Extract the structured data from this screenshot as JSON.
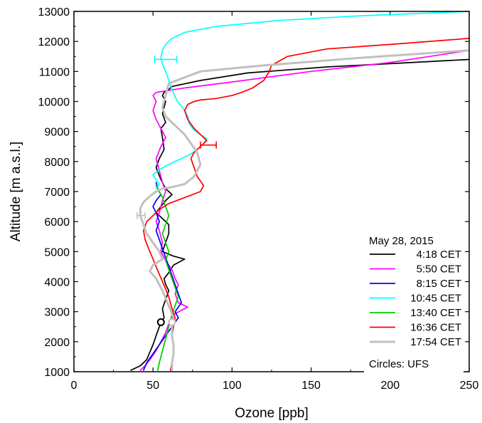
{
  "chart_data": {
    "type": "line",
    "xlabel": "Ozone [ppb]",
    "ylabel": "Altitude [m a.s.l.]",
    "xlim": [
      0,
      250
    ],
    "ylim": [
      1000,
      13000
    ],
    "x_ticks": [
      0,
      50,
      100,
      150,
      200,
      250
    ],
    "y_ticks": [
      1000,
      2000,
      3000,
      4000,
      5000,
      6000,
      7000,
      8000,
      9000,
      10000,
      11000,
      12000,
      13000
    ],
    "x_tick_labels": [
      "0",
      "50",
      "100",
      "150",
      "200",
      "250"
    ],
    "y_tick_labels": [
      "1000",
      "2000",
      "3000",
      "4000",
      "5000",
      "6000",
      "7000",
      "8000",
      "9000",
      "10000",
      "11000",
      "12000",
      "13000"
    ],
    "grid": false,
    "legend": {
      "placement": "bottom-right",
      "title": "May 28, 2015",
      "note": "Circles: UFS"
    },
    "series": [
      {
        "name": "4:18 CET",
        "color": "#000000",
        "x": [
          36,
          42,
          46,
          48,
          50,
          52,
          54,
          57,
          56,
          58,
          60,
          58,
          57,
          60,
          63,
          70,
          63,
          56,
          58,
          60,
          60,
          56,
          52,
          55,
          58,
          62,
          58,
          55,
          52,
          54,
          57,
          56,
          55,
          58,
          56,
          57,
          58,
          56,
          57,
          60,
          62,
          80,
          110,
          160,
          250
        ],
        "y": [
          1050,
          1200,
          1400,
          1650,
          1900,
          2200,
          2500,
          2800,
          3100,
          3400,
          3700,
          3900,
          4100,
          4300,
          4550,
          4750,
          4850,
          5000,
          5300,
          5600,
          5900,
          6100,
          6300,
          6500,
          6700,
          6900,
          7100,
          7400,
          7800,
          8100,
          8400,
          8800,
          9100,
          9300,
          9600,
          9800,
          10000,
          10200,
          10300,
          10400,
          10500,
          10700,
          10950,
          11150,
          11400
        ]
      },
      {
        "name": "5:50 CET",
        "color": "#ff00ff",
        "x": [
          42,
          45,
          48,
          52,
          55,
          58,
          60,
          63,
          68,
          72,
          66,
          64,
          66,
          64,
          62,
          58,
          55,
          56,
          54,
          52,
          54,
          56,
          58,
          56,
          54,
          52,
          55,
          58,
          55,
          52,
          50,
          52,
          50,
          52,
          70,
          100,
          150,
          200,
          250
        ],
        "y": [
          1050,
          1200,
          1400,
          1700,
          2000,
          2300,
          2600,
          2900,
          3050,
          3150,
          3300,
          3600,
          3900,
          4100,
          4400,
          4700,
          5000,
          5300,
          5700,
          6000,
          6300,
          6700,
          7000,
          7300,
          7700,
          8100,
          8500,
          8800,
          9100,
          9400,
          9700,
          10000,
          10200,
          10300,
          10450,
          10650,
          11000,
          11300,
          11700
        ]
      },
      {
        "name": "8:15 CET",
        "color": "#0000ff",
        "x": [
          44,
          46,
          50,
          54,
          58,
          62,
          66,
          64,
          68,
          66,
          64,
          62,
          60,
          58,
          56,
          54,
          52,
          54,
          52,
          50,
          52,
          55,
          53,
          52
        ],
        "y": [
          1050,
          1300,
          1600,
          1900,
          2200,
          2500,
          2800,
          3000,
          3300,
          3600,
          3900,
          4200,
          4500,
          4800,
          5100,
          5400,
          5700,
          6000,
          6300,
          6500,
          6700,
          6900,
          7100,
          7300
        ]
      },
      {
        "name": "10:45 CET",
        "color": "#00ffff",
        "x": [
          52,
          54,
          52,
          50,
          52,
          55,
          58,
          62,
          66,
          70,
          74,
          78,
          82,
          84,
          80,
          76,
          73,
          72,
          70,
          68,
          66,
          64,
          62,
          60,
          58,
          56,
          55,
          56,
          58,
          62,
          70,
          90,
          130,
          180,
          250
        ],
        "y": [
          7100,
          7250,
          7400,
          7550,
          7650,
          7750,
          7850,
          7950,
          8050,
          8150,
          8250,
          8400,
          8600,
          8750,
          8900,
          9050,
          9250,
          9500,
          9700,
          9850,
          9950,
          10150,
          10400,
          10700,
          11000,
          11250,
          11450,
          11700,
          11900,
          12100,
          12300,
          12500,
          12700,
          12850,
          13000
        ]
      },
      {
        "name": "13:40 CET",
        "color": "#00cc00",
        "x": [
          53,
          54,
          56,
          58,
          60,
          62,
          64,
          66,
          64,
          62,
          60,
          58,
          60,
          58,
          56,
          58,
          60,
          58,
          56,
          54,
          52
        ],
        "y": [
          1050,
          1300,
          1700,
          2100,
          2500,
          2900,
          3200,
          3500,
          3800,
          4100,
          4400,
          4700,
          5000,
          5300,
          5600,
          5900,
          6200,
          6500,
          6800,
          7000,
          7200
        ]
      },
      {
        "name": "16:36 CET",
        "color": "#ff0000",
        "x": [
          61,
          62,
          63,
          63,
          62,
          63,
          64,
          62,
          60,
          56,
          52,
          48,
          45,
          44,
          46,
          50,
          54,
          60,
          70,
          80,
          82,
          78,
          76,
          74,
          76,
          80,
          84,
          80,
          76,
          72,
          70,
          72,
          76,
          80,
          90,
          100,
          106,
          113,
          120,
          123,
          125,
          135,
          160,
          200,
          250
        ],
        "y": [
          1050,
          1300,
          1600,
          1900,
          2200,
          2500,
          2800,
          3100,
          3500,
          4000,
          4500,
          5000,
          5400,
          5700,
          6000,
          6200,
          6400,
          6600,
          6800,
          7000,
          7200,
          7500,
          7800,
          8100,
          8300,
          8500,
          8700,
          8900,
          9100,
          9400,
          9700,
          9900,
          10000,
          10050,
          10100,
          10200,
          10300,
          10450,
          10700,
          10950,
          11200,
          11500,
          11750,
          11900,
          12100
        ]
      },
      {
        "name": "17:54 CET",
        "color": "#c0c0c0",
        "x": [
          62,
          62,
          63,
          63,
          62,
          62,
          63,
          60,
          56,
          52,
          48,
          50,
          56,
          54,
          50,
          46,
          44,
          42,
          42,
          44,
          48,
          52,
          56,
          62,
          70,
          76,
          80,
          78,
          74,
          70,
          66,
          62,
          58,
          56,
          58,
          60,
          80,
          120,
          180,
          250
        ],
        "y": [
          1050,
          1300,
          1600,
          1900,
          2200,
          2500,
          2800,
          3200,
          3700,
          4100,
          4350,
          4550,
          4750,
          5000,
          5300,
          5600,
          5900,
          6200,
          6450,
          6650,
          6850,
          7000,
          7100,
          7150,
          7250,
          7500,
          7900,
          8300,
          8600,
          8900,
          9100,
          9300,
          9500,
          9800,
          10200,
          10600,
          11000,
          11200,
          11450,
          11700
        ]
      }
    ],
    "error_bars": [
      {
        "series": "10:45 CET",
        "x": 58,
        "y": 11400,
        "x_low": 51,
        "x_high": 65
      },
      {
        "series": "16:36 CET",
        "x": 84,
        "y": 8550,
        "x_low": 80,
        "x_high": 90
      },
      {
        "series": "17:54 CET",
        "x": 42,
        "y": 6200,
        "x_low": 40,
        "x_high": 45
      }
    ],
    "circles": [
      {
        "series": "4:18 CET",
        "x": 55,
        "y": 2650
      },
      {
        "series": "17:54 CET",
        "x": 62,
        "y": 2650
      }
    ]
  }
}
